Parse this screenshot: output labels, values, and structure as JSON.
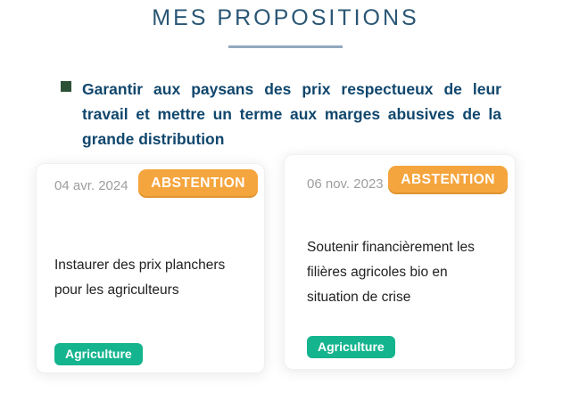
{
  "header": {
    "title": "MES PROPOSITIONS"
  },
  "proposition": {
    "text": "Garantir aux paysans des prix respectueux de leur travail et mettre un terme aux marges abusives de la grande distribution"
  },
  "cards": [
    {
      "date": "04 avr. 2024",
      "vote_label": "ABSTENTION",
      "title": "Instaurer des prix planchers pour les agriculteurs",
      "tag": "Agriculture"
    },
    {
      "date": "06 nov. 2023",
      "vote_label": "ABSTENTION",
      "title": "Soutenir financièrement les filières agricoles bio en situation de crise",
      "tag": "Agriculture"
    }
  ],
  "colors": {
    "title_navy": "#2a5674",
    "underline_blue_gray": "#92a9bd",
    "bullet_dark_green": "#2d5135",
    "proposition_navy": "#11476d",
    "badge_orange": "#f5a53d",
    "tag_teal": "#14b48e",
    "date_gray": "#9e9e9e",
    "card_text_dark": "#212121"
  }
}
